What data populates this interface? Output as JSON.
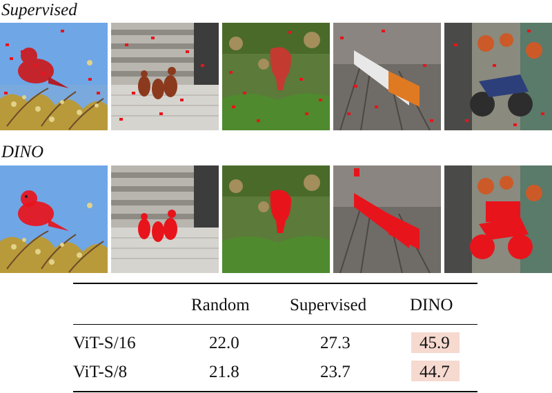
{
  "row_labels": {
    "supervised": "Supervised",
    "dino": "DINO"
  },
  "panels": [
    {
      "icon": "bird-image",
      "subject": "bird"
    },
    {
      "icon": "ducks-on-stairs-image",
      "subject": "ducks"
    },
    {
      "icon": "elephant-image",
      "subject": "elephant"
    },
    {
      "icon": "train-image",
      "subject": "train"
    },
    {
      "icon": "motorcycle-graffiti-image",
      "subject": "motorcycle"
    }
  ],
  "mask_color": "#e8141c",
  "highlight_color": "#f6d9cf",
  "table": {
    "columns": [
      "Random",
      "Supervised",
      "DINO"
    ],
    "rows": [
      {
        "model": "ViT-S/16",
        "random": "22.0",
        "supervised": "27.3",
        "dino": "45.9"
      },
      {
        "model": "ViT-S/8",
        "random": "21.8",
        "supervised": "23.7",
        "dino": "44.7"
      }
    ]
  }
}
